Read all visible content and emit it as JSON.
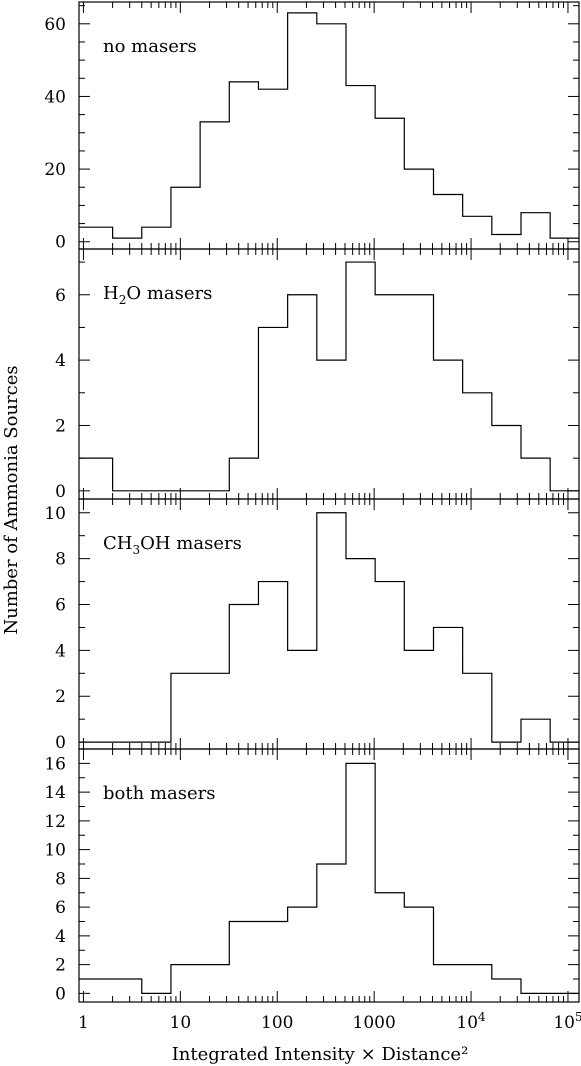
{
  "chart_data": {
    "type": "histogram",
    "xscale": "log",
    "xlim": [
      0.9,
      130000
    ],
    "xlabel": "Integrated Intensity × Distance²",
    "ylabel": "Number of Ammonia Sources",
    "xticks": [
      {
        "value": 1,
        "label": "1"
      },
      {
        "value": 10,
        "label": "10"
      },
      {
        "value": 100,
        "label": "100"
      },
      {
        "value": 1000,
        "label": "1000"
      },
      {
        "value": 10000,
        "label": "10",
        "exp": "4"
      },
      {
        "value": 100000,
        "label": "10",
        "exp": "5"
      }
    ],
    "bin_edges": [
      1,
      2,
      4,
      8,
      16,
      32,
      64,
      128,
      256,
      512,
      1024,
      2048,
      4096,
      8192,
      16384,
      32768,
      65536,
      131072
    ],
    "panels": [
      {
        "label": "no masers",
        "ylim": [
          -2,
          66
        ],
        "yticks": [
          0,
          20,
          40,
          60
        ],
        "counts": [
          4,
          1,
          4,
          15,
          33,
          44,
          42,
          63,
          60,
          43,
          34,
          20,
          13,
          7,
          2,
          8,
          1
        ]
      },
      {
        "label": "H₂O masers",
        "label_parts": {
          "prefix": "H",
          "sub": "2",
          "suffix": "O masers"
        },
        "ylim": [
          -0.25,
          7.4
        ],
        "yticks": [
          0,
          2,
          4,
          6
        ],
        "counts": [
          1,
          0,
          0,
          0,
          0,
          1,
          5,
          6,
          4,
          7,
          6,
          6,
          4,
          3,
          2,
          1,
          0
        ]
      },
      {
        "label": "CH₃OH masers",
        "label_parts": {
          "prefix": "CH",
          "sub": "3",
          "suffix": "OH masers"
        },
        "ylim": [
          -0.3,
          10.6
        ],
        "yticks": [
          0,
          2,
          4,
          6,
          8,
          10
        ],
        "counts": [
          0,
          0,
          0,
          3,
          3,
          6,
          7,
          4,
          10,
          8,
          7,
          4,
          5,
          3,
          0,
          1,
          0
        ]
      },
      {
        "label": "both masers",
        "ylim": [
          -0.6,
          17
        ],
        "yticks": [
          0,
          2,
          4,
          6,
          8,
          10,
          12,
          14,
          16
        ],
        "counts": [
          1,
          1,
          0,
          2,
          2,
          5,
          5,
          6,
          9,
          16,
          7,
          6,
          2,
          2,
          1,
          0,
          0
        ]
      }
    ]
  }
}
